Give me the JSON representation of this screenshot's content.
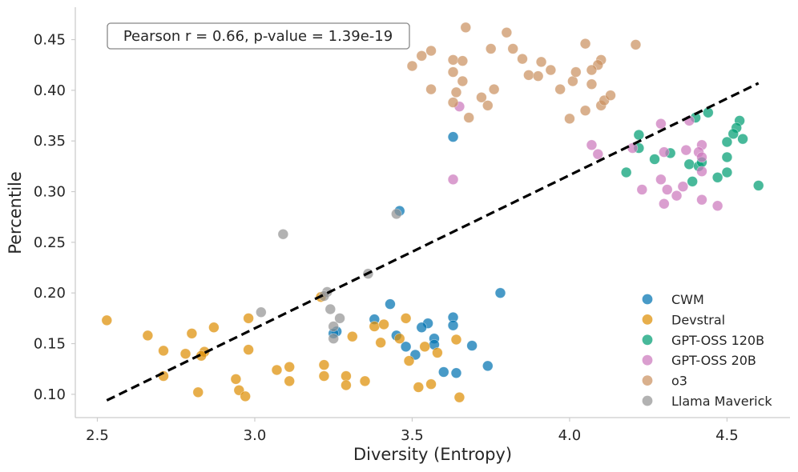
{
  "chart_data": {
    "type": "scatter",
    "title": "",
    "xlabel": "Diversity (Entropy)",
    "ylabel": "Percentile",
    "xlim": [
      2.43,
      4.7
    ],
    "ylim": [
      0.077,
      0.482
    ],
    "xticks": [
      2.5,
      3.0,
      3.5,
      4.0,
      4.5
    ],
    "xtick_labels": [
      "2.5",
      "3.0",
      "3.5",
      "4.0",
      "4.5"
    ],
    "yticks": [
      0.1,
      0.15,
      0.2,
      0.25,
      0.3,
      0.35,
      0.4,
      0.45
    ],
    "ytick_labels": [
      "0.10",
      "0.15",
      "0.20",
      "0.25",
      "0.30",
      "0.35",
      "0.40",
      "0.45"
    ],
    "grid": false,
    "legend_position": "bottom-right",
    "annotation": "Pearson r = 0.66, p-value = 1.39e-19",
    "trendline": {
      "style": "dashed",
      "color": "#000000",
      "x": [
        2.53,
        4.6
      ],
      "y": [
        0.094,
        0.407
      ]
    },
    "series": [
      {
        "name": "CWM",
        "color": "#0173b2",
        "points": [
          [
            3.46,
            0.281
          ],
          [
            3.63,
            0.354
          ],
          [
            3.78,
            0.2
          ],
          [
            3.43,
            0.189
          ],
          [
            3.38,
            0.174
          ],
          [
            3.63,
            0.176
          ],
          [
            3.63,
            0.168
          ],
          [
            3.55,
            0.17
          ],
          [
            3.53,
            0.166
          ],
          [
            3.57,
            0.155
          ],
          [
            3.45,
            0.158
          ],
          [
            3.26,
            0.162
          ],
          [
            3.25,
            0.16
          ],
          [
            3.48,
            0.147
          ],
          [
            3.57,
            0.149
          ],
          [
            3.69,
            0.148
          ],
          [
            3.51,
            0.139
          ],
          [
            3.74,
            0.128
          ],
          [
            3.6,
            0.122
          ],
          [
            3.64,
            0.121
          ]
        ]
      },
      {
        "name": "Devstral",
        "color": "#de8f05",
        "points": [
          [
            2.53,
            0.173
          ],
          [
            2.66,
            0.158
          ],
          [
            2.71,
            0.143
          ],
          [
            2.78,
            0.14
          ],
          [
            2.8,
            0.16
          ],
          [
            2.84,
            0.142
          ],
          [
            2.83,
            0.138
          ],
          [
            2.87,
            0.166
          ],
          [
            2.71,
            0.118
          ],
          [
            2.82,
            0.102
          ],
          [
            2.98,
            0.175
          ],
          [
            2.98,
            0.144
          ],
          [
            2.94,
            0.115
          ],
          [
            2.95,
            0.104
          ],
          [
            2.97,
            0.098
          ],
          [
            3.07,
            0.124
          ],
          [
            3.11,
            0.127
          ],
          [
            3.11,
            0.113
          ],
          [
            3.21,
            0.196
          ],
          [
            3.22,
            0.129
          ],
          [
            3.22,
            0.118
          ],
          [
            3.29,
            0.118
          ],
          [
            3.29,
            0.109
          ],
          [
            3.31,
            0.157
          ],
          [
            3.35,
            0.113
          ],
          [
            3.38,
            0.167
          ],
          [
            3.41,
            0.169
          ],
          [
            3.4,
            0.151
          ],
          [
            3.46,
            0.155
          ],
          [
            3.48,
            0.175
          ],
          [
            3.49,
            0.133
          ],
          [
            3.52,
            0.107
          ],
          [
            3.54,
            0.147
          ],
          [
            3.56,
            0.11
          ],
          [
            3.58,
            0.141
          ],
          [
            3.64,
            0.154
          ],
          [
            3.65,
            0.097
          ]
        ]
      },
      {
        "name": "GPT-OSS 120B",
        "color": "#029e73",
        "points": [
          [
            4.44,
            0.378
          ],
          [
            4.4,
            0.373
          ],
          [
            4.54,
            0.37
          ],
          [
            4.53,
            0.363
          ],
          [
            4.52,
            0.357
          ],
          [
            4.55,
            0.352
          ],
          [
            4.5,
            0.349
          ],
          [
            4.22,
            0.356
          ],
          [
            4.22,
            0.343
          ],
          [
            4.32,
            0.338
          ],
          [
            4.27,
            0.332
          ],
          [
            4.38,
            0.327
          ],
          [
            4.41,
            0.325
          ],
          [
            4.42,
            0.329
          ],
          [
            4.5,
            0.334
          ],
          [
            4.18,
            0.319
          ],
          [
            4.5,
            0.319
          ],
          [
            4.47,
            0.314
          ],
          [
            4.39,
            0.31
          ],
          [
            4.6,
            0.306
          ]
        ]
      },
      {
        "name": "GPT-OSS 20B",
        "color": "#cc78bc",
        "points": [
          [
            4.29,
            0.367
          ],
          [
            4.38,
            0.37
          ],
          [
            3.65,
            0.384
          ],
          [
            4.07,
            0.346
          ],
          [
            4.09,
            0.337
          ],
          [
            4.2,
            0.343
          ],
          [
            4.3,
            0.339
          ],
          [
            4.37,
            0.341
          ],
          [
            4.42,
            0.346
          ],
          [
            4.41,
            0.339
          ],
          [
            4.42,
            0.334
          ],
          [
            3.63,
            0.312
          ],
          [
            4.29,
            0.312
          ],
          [
            4.42,
            0.32
          ],
          [
            4.23,
            0.302
          ],
          [
            4.31,
            0.302
          ],
          [
            4.34,
            0.296
          ],
          [
            4.36,
            0.305
          ],
          [
            4.3,
            0.288
          ],
          [
            4.42,
            0.292
          ],
          [
            4.47,
            0.286
          ]
        ]
      },
      {
        "name": "o3",
        "color": "#ca9161",
        "points": [
          [
            3.67,
            0.462
          ],
          [
            3.8,
            0.457
          ],
          [
            3.75,
            0.441
          ],
          [
            3.82,
            0.441
          ],
          [
            3.53,
            0.434
          ],
          [
            3.56,
            0.439
          ],
          [
            3.63,
            0.43
          ],
          [
            3.66,
            0.429
          ],
          [
            3.85,
            0.431
          ],
          [
            3.87,
            0.415
          ],
          [
            4.05,
            0.446
          ],
          [
            4.21,
            0.445
          ],
          [
            4.1,
            0.43
          ],
          [
            4.09,
            0.425
          ],
          [
            4.07,
            0.42
          ],
          [
            3.91,
            0.428
          ],
          [
            3.94,
            0.42
          ],
          [
            3.97,
            0.401
          ],
          [
            4.01,
            0.409
          ],
          [
            4.07,
            0.406
          ],
          [
            4.02,
            0.418
          ],
          [
            3.63,
            0.418
          ],
          [
            3.66,
            0.409
          ],
          [
            3.64,
            0.398
          ],
          [
            3.63,
            0.388
          ],
          [
            3.5,
            0.424
          ],
          [
            3.56,
            0.401
          ],
          [
            3.72,
            0.393
          ],
          [
            3.76,
            0.401
          ],
          [
            3.74,
            0.385
          ],
          [
            3.68,
            0.373
          ],
          [
            4.0,
            0.372
          ],
          [
            4.05,
            0.38
          ],
          [
            4.1,
            0.385
          ],
          [
            4.11,
            0.39
          ],
          [
            4.13,
            0.395
          ],
          [
            3.9,
            0.414
          ]
        ]
      },
      {
        "name": "Llama Maverick",
        "color": "#949494",
        "points": [
          [
            3.45,
            0.278
          ],
          [
            3.09,
            0.258
          ],
          [
            3.36,
            0.219
          ],
          [
            3.23,
            0.201
          ],
          [
            3.22,
            0.197
          ],
          [
            3.24,
            0.184
          ],
          [
            3.02,
            0.181
          ],
          [
            3.27,
            0.175
          ],
          [
            3.25,
            0.167
          ],
          [
            3.25,
            0.155
          ]
        ]
      }
    ]
  }
}
